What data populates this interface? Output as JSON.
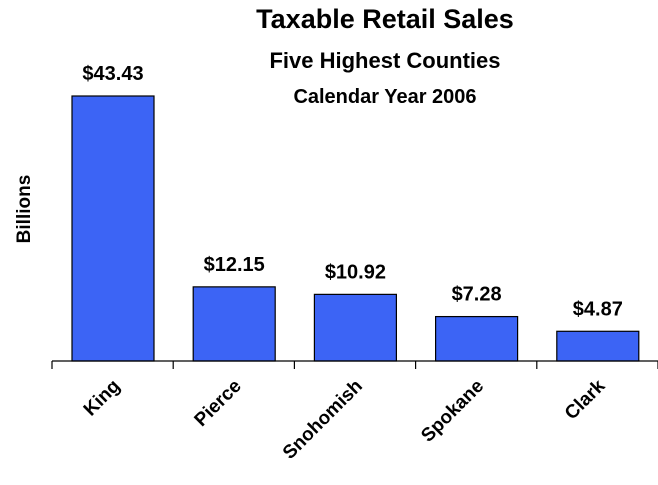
{
  "chart_data": {
    "type": "bar",
    "title": "Taxable Retail Sales",
    "subtitle": "Five Highest Counties",
    "subtitle2": "Calendar Year 2006",
    "xlabel": "",
    "ylabel": "Billions",
    "categories": [
      "King",
      "Pierce",
      "Snohomish",
      "Spokane",
      "Clark"
    ],
    "values": [
      43.43,
      12.15,
      10.92,
      7.28,
      4.87
    ],
    "value_labels": [
      "$43.43",
      "$12.15",
      "$10.92",
      "$7.28",
      "$4.87"
    ],
    "ylim": [
      0,
      44
    ],
    "grid": false,
    "legend": "none",
    "bar_color": "#3c64f5",
    "bar_outline": "#000000"
  }
}
